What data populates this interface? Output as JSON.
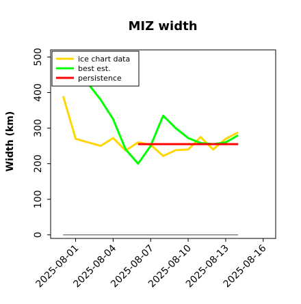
{
  "chart_data": {
    "type": "line",
    "title": "MIZ width",
    "ylabel": "Width (km)",
    "xlabel": "",
    "ylim": [
      -10,
      520
    ],
    "xlim": [
      "2025-07-30",
      "2025-08-17"
    ],
    "y_ticks": [
      0,
      100,
      200,
      300,
      400,
      500
    ],
    "x_ticks": [
      "2025-08-01",
      "2025-08-04",
      "2025-08-07",
      "2025-08-10",
      "2025-08-13",
      "2025-08-16"
    ],
    "grid": false,
    "legend_position": "top-left",
    "series": [
      {
        "name": "ice chart data",
        "color": "#FFD700",
        "points": [
          [
            "2025-07-31",
            390
          ],
          [
            "2025-08-01",
            270
          ],
          [
            "2025-08-02",
            260
          ],
          [
            "2025-08-03",
            250
          ],
          [
            "2025-08-04",
            272
          ],
          [
            "2025-08-05",
            237
          ],
          [
            "2025-08-06",
            260
          ],
          [
            "2025-08-07",
            253
          ],
          [
            "2025-08-08",
            222
          ],
          [
            "2025-08-09",
            238
          ],
          [
            "2025-08-10",
            240
          ],
          [
            "2025-08-11",
            275
          ],
          [
            "2025-08-12",
            240
          ],
          [
            "2025-08-13",
            270
          ],
          [
            "2025-08-14",
            288
          ]
        ]
      },
      {
        "name": "best est.",
        "color": "#00FF00",
        "points": [
          [
            "2025-08-02",
            425
          ],
          [
            "2025-08-03",
            380
          ],
          [
            "2025-08-04",
            325
          ],
          [
            "2025-08-05",
            240
          ],
          [
            "2025-08-06",
            200
          ],
          [
            "2025-08-07",
            250
          ],
          [
            "2025-08-08",
            335
          ],
          [
            "2025-08-09",
            300
          ],
          [
            "2025-08-10",
            272
          ],
          [
            "2025-08-11",
            258
          ],
          [
            "2025-08-12",
            255
          ],
          [
            "2025-08-13",
            260
          ],
          [
            "2025-08-14",
            280
          ]
        ]
      },
      {
        "name": "persistence",
        "color": "#FF0000",
        "points": [
          [
            "2025-08-06",
            255
          ],
          [
            "2025-08-14",
            255
          ]
        ]
      }
    ],
    "extra_lines": [
      {
        "color": "#808080",
        "points": [
          [
            "2025-07-31",
            0
          ],
          [
            "2025-08-14",
            0
          ]
        ]
      }
    ]
  }
}
